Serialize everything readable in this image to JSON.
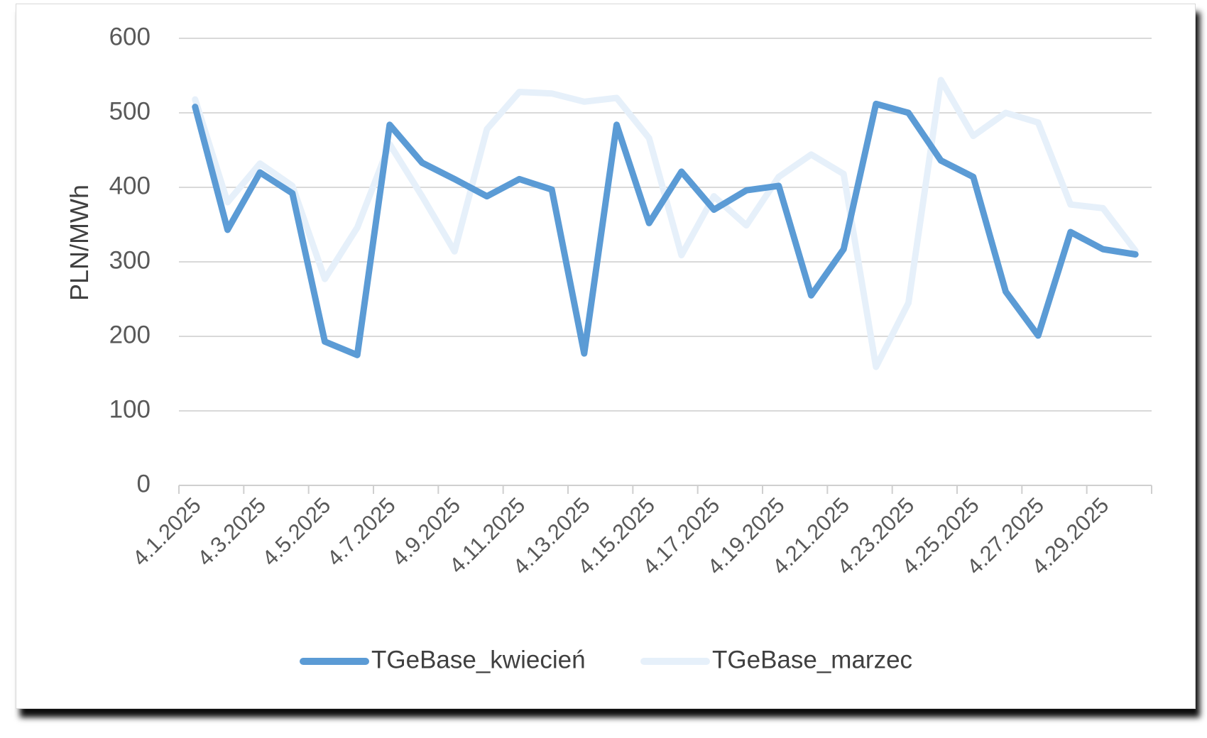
{
  "chart_data": {
    "type": "line",
    "xlabel": "",
    "ylabel": "PLN/MWh",
    "ylim": [
      0,
      600
    ],
    "yticks": [
      0,
      100,
      200,
      300,
      400,
      500,
      600
    ],
    "grid": true,
    "legend_position": "bottom",
    "x": [
      "4.1.2025",
      "4.2.2025",
      "4.3.2025",
      "4.4.2025",
      "4.5.2025",
      "4.6.2025",
      "4.7.2025",
      "4.8.2025",
      "4.9.2025",
      "4.10.2025",
      "4.11.2025",
      "4.12.2025",
      "4.13.2025",
      "4.14.2025",
      "4.15.2025",
      "4.16.2025",
      "4.17.2025",
      "4.18.2025",
      "4.19.2025",
      "4.20.2025",
      "4.21.2025",
      "4.22.2025",
      "4.23.2025",
      "4.24.2025",
      "4.25.2025",
      "4.26.2025",
      "4.27.2025",
      "4.28.2025",
      "4.29.2025",
      "4.30.2025"
    ],
    "x_tick_labels": [
      "4.1.2025",
      "4.3.2025",
      "4.5.2025",
      "4.7.2025",
      "4.9.2025",
      "4.11.2025",
      "4.13.2025",
      "4.15.2025",
      "4.17.2025",
      "4.19.2025",
      "4.21.2025",
      "4.23.2025",
      "4.25.2025",
      "4.27.2025",
      "4.29.2025"
    ],
    "series": [
      {
        "name": "TGeBase_kwiecień",
        "color": "#5b9bd5",
        "values": [
          508,
          343,
          420,
          392,
          193,
          175,
          484,
          433,
          411,
          388,
          411,
          397,
          177,
          484,
          352,
          421,
          370,
          396,
          402,
          255,
          317,
          512,
          500,
          436,
          414,
          260,
          201,
          340,
          317,
          310
        ]
      },
      {
        "name": "TGeBase_marzec",
        "color": "#e6f0fa",
        "values": [
          518,
          380,
          432,
          402,
          277,
          346,
          458,
          388,
          314,
          478,
          528,
          526,
          515,
          520,
          466,
          309,
          388,
          349,
          414,
          444,
          418,
          159,
          245,
          544,
          469,
          500,
          487,
          377,
          372,
          315
        ]
      }
    ]
  }
}
